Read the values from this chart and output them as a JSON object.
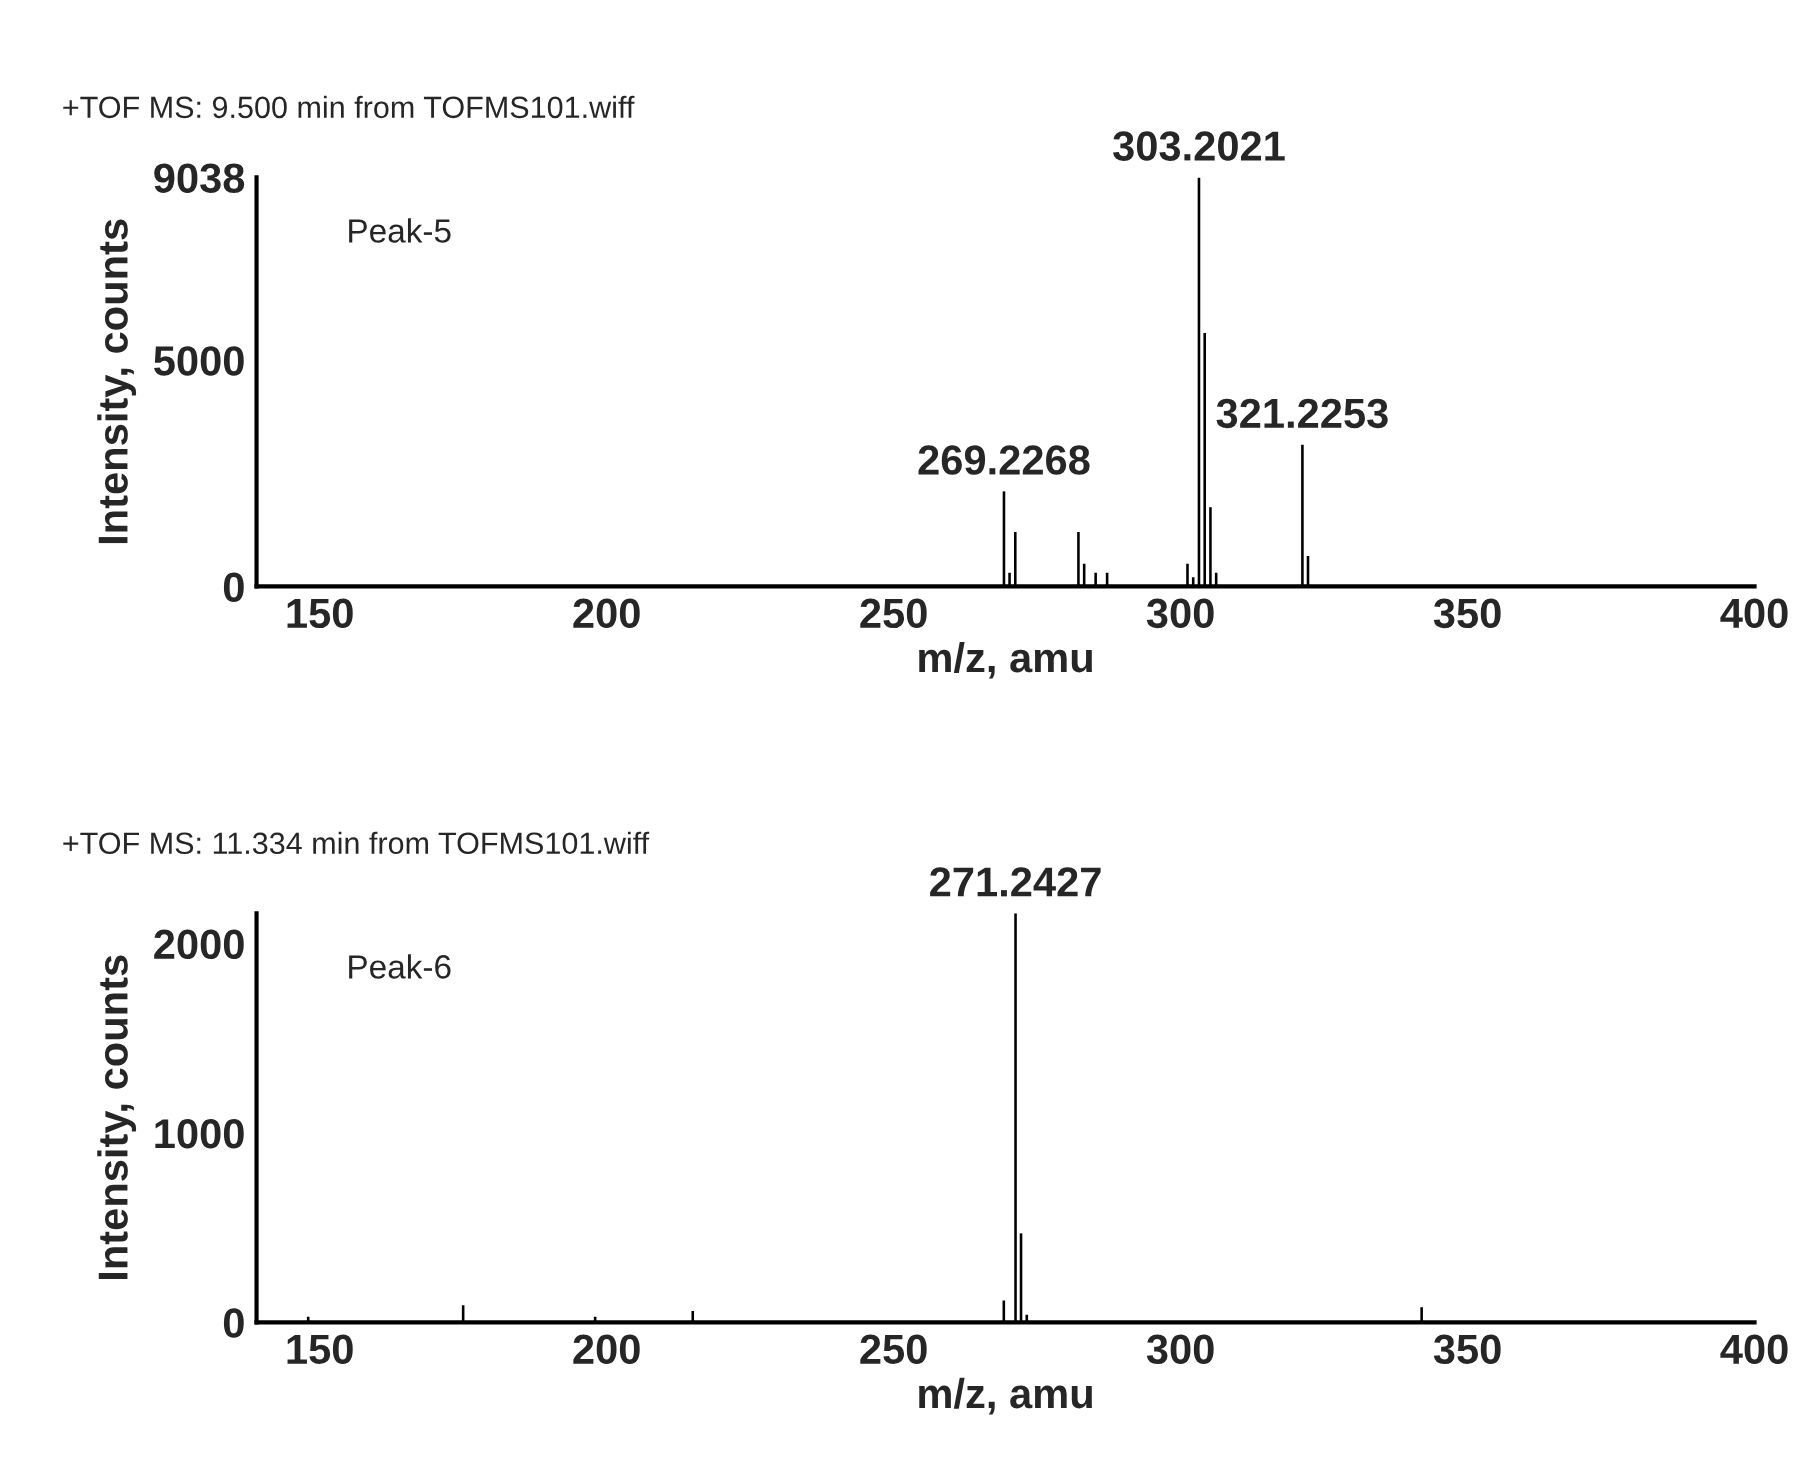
{
  "chart_data": [
    {
      "type": "bar",
      "title": "+TOF MS: 9.500 min from TOFMS101.wiff",
      "xlabel": "m/z, amu",
      "ylabel": "Intensity, counts",
      "x": [
        269.2268,
        270.2,
        271.2,
        282.2,
        283.2,
        285.2,
        287.2,
        301.2,
        302.2,
        303.2021,
        304.2,
        305.2,
        306.2,
        321.2253,
        322.2
      ],
      "values": [
        2100,
        300,
        1200,
        1200,
        500,
        300,
        300,
        500,
        200,
        9038,
        5600,
        1750,
        300,
        3130,
        670
      ],
      "color": "#000000",
      "xlim": [
        139,
        400
      ],
      "xticks": [
        150,
        200,
        250,
        300,
        350,
        400
      ],
      "ylim": [
        0,
        9038
      ],
      "yticks": [
        0,
        5000,
        9038
      ],
      "annotations": [
        "Peak-5",
        {
          "text": "303.2021",
          "x": 303.2021,
          "y": 9038
        },
        {
          "text": "269.2268",
          "x": 269.2268,
          "y": 2100
        },
        {
          "text": "321.2253",
          "x": 321.2253,
          "y": 3130
        }
      ]
    },
    {
      "type": "bar",
      "title": "+TOF MS: 11.334 min from TOFMS101.wiff",
      "xlabel": "m/z, amu",
      "ylabel": "Intensity, counts",
      "x": [
        148,
        175,
        198,
        215,
        269.2,
        271.2427,
        272.2,
        273.2,
        342
      ],
      "values": [
        30,
        90,
        30,
        60,
        115,
        2160,
        470,
        40,
        80
      ],
      "color": "#000000",
      "xlim": [
        139,
        400
      ],
      "xticks": [
        150,
        200,
        250,
        300,
        350,
        400
      ],
      "ylim": [
        0,
        2160
      ],
      "yticks": [
        0,
        1000,
        2000
      ],
      "annotations": [
        "Peak-6",
        {
          "text": "271.2427",
          "x": 271.2427,
          "y": 2160
        }
      ]
    }
  ]
}
